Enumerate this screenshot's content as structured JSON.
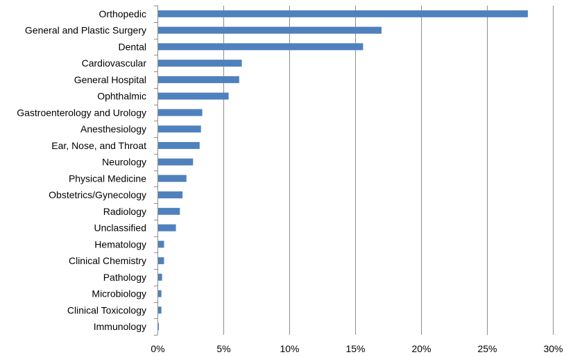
{
  "chart_data": {
    "type": "bar",
    "orientation": "horizontal",
    "title": "",
    "xlabel": "",
    "ylabel": "",
    "xlim": [
      0,
      30
    ],
    "x_unit": "%",
    "grid": "vertical",
    "legend": "none",
    "bar_color": "#4f81bd",
    "x_ticks": [
      "0%",
      "5%",
      "10%",
      "15%",
      "20%",
      "25%",
      "30%"
    ],
    "categories": [
      "Orthopedic",
      "General and Plastic Surgery",
      "Dental",
      "Cardiovascular",
      "General Hospital",
      "Ophthalmic",
      "Gastroenterology and Urology",
      "Anesthesiology",
      "Ear, Nose, and Throat",
      "Neurology",
      "Physical Medicine",
      "Obstetrics/Gynecology",
      "Radiology",
      "Unclassified",
      "Hematology",
      "Clinical Chemistry",
      "Pathology",
      "Microbiology",
      "Clinical Toxicology",
      "Immunology"
    ],
    "values": [
      28.1,
      17.0,
      15.6,
      6.4,
      6.2,
      5.4,
      3.4,
      3.3,
      3.2,
      2.7,
      2.2,
      1.9,
      1.7,
      1.4,
      0.5,
      0.5,
      0.35,
      0.3,
      0.3,
      0.1
    ]
  }
}
